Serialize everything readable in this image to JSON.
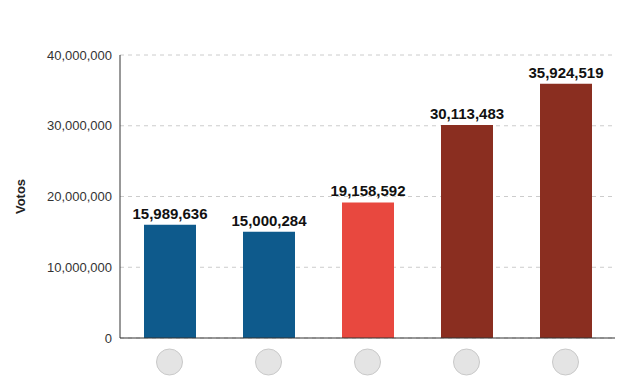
{
  "chart_data": {
    "type": "bar",
    "y_label": "Votos",
    "categories": [
      null,
      null,
      null,
      null,
      null
    ],
    "values": [
      15989636,
      15000284,
      19158592,
      30113483,
      35924519
    ],
    "value_labels": [
      "15,989,636",
      "15,000,284",
      "19,158,592",
      "30,113,483",
      "35,924,519"
    ],
    "colors": [
      "#0e5a8c",
      "#0e5a8c",
      "#e8483f",
      "#8a2e20",
      "#8a2e20"
    ],
    "ylim": [
      0,
      40000000
    ],
    "yticks": [
      {
        "value": 0,
        "label": "0"
      },
      {
        "value": 10000000,
        "label": "10,000,000"
      },
      {
        "value": 20000000,
        "label": "20,000,000"
      },
      {
        "value": 30000000,
        "label": "30,000,000"
      },
      {
        "value": 40000000,
        "label": "40,000,000"
      }
    ],
    "grid": true,
    "data_labels": true
  }
}
